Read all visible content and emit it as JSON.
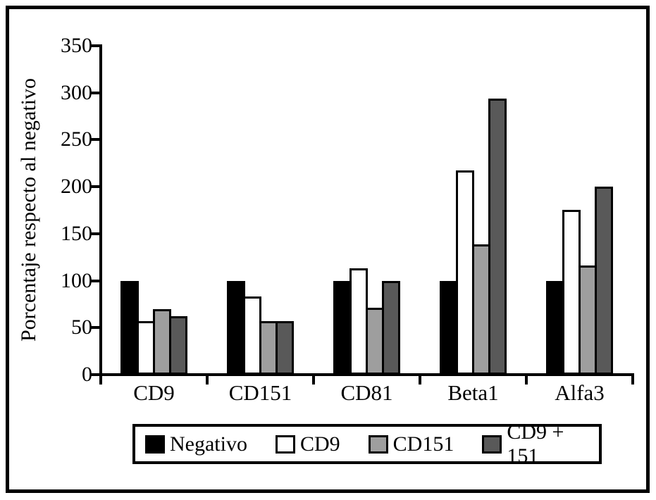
{
  "figure": {
    "background": "#ffffff",
    "frame_color": "#000000"
  },
  "chart_data": {
    "type": "bar",
    "title": "",
    "xlabel": "",
    "ylabel": "Porcentaje respecto al negativo",
    "ylim": [
      0,
      350
    ],
    "yticks": [
      0,
      50,
      100,
      150,
      200,
      250,
      300,
      350
    ],
    "grid": false,
    "legend_position": "bottom",
    "categories": [
      "CD9",
      "CD151",
      "CD81",
      "Beta1",
      "Alfa3"
    ],
    "series": [
      {
        "name": "Negativo",
        "color": "#000000",
        "values": [
          100,
          100,
          100,
          100,
          100
        ]
      },
      {
        "name": "CD9",
        "color": "#ffffff",
        "values": [
          57,
          83,
          113,
          217,
          175
        ]
      },
      {
        "name": "CD151",
        "color": "#9e9e9e",
        "values": [
          70,
          57,
          71,
          139,
          116
        ]
      },
      {
        "name": "CD9 + 151",
        "color": "#595959",
        "values": [
          62,
          57,
          100,
          294,
          200
        ]
      }
    ],
    "axis_color": "#000000"
  }
}
